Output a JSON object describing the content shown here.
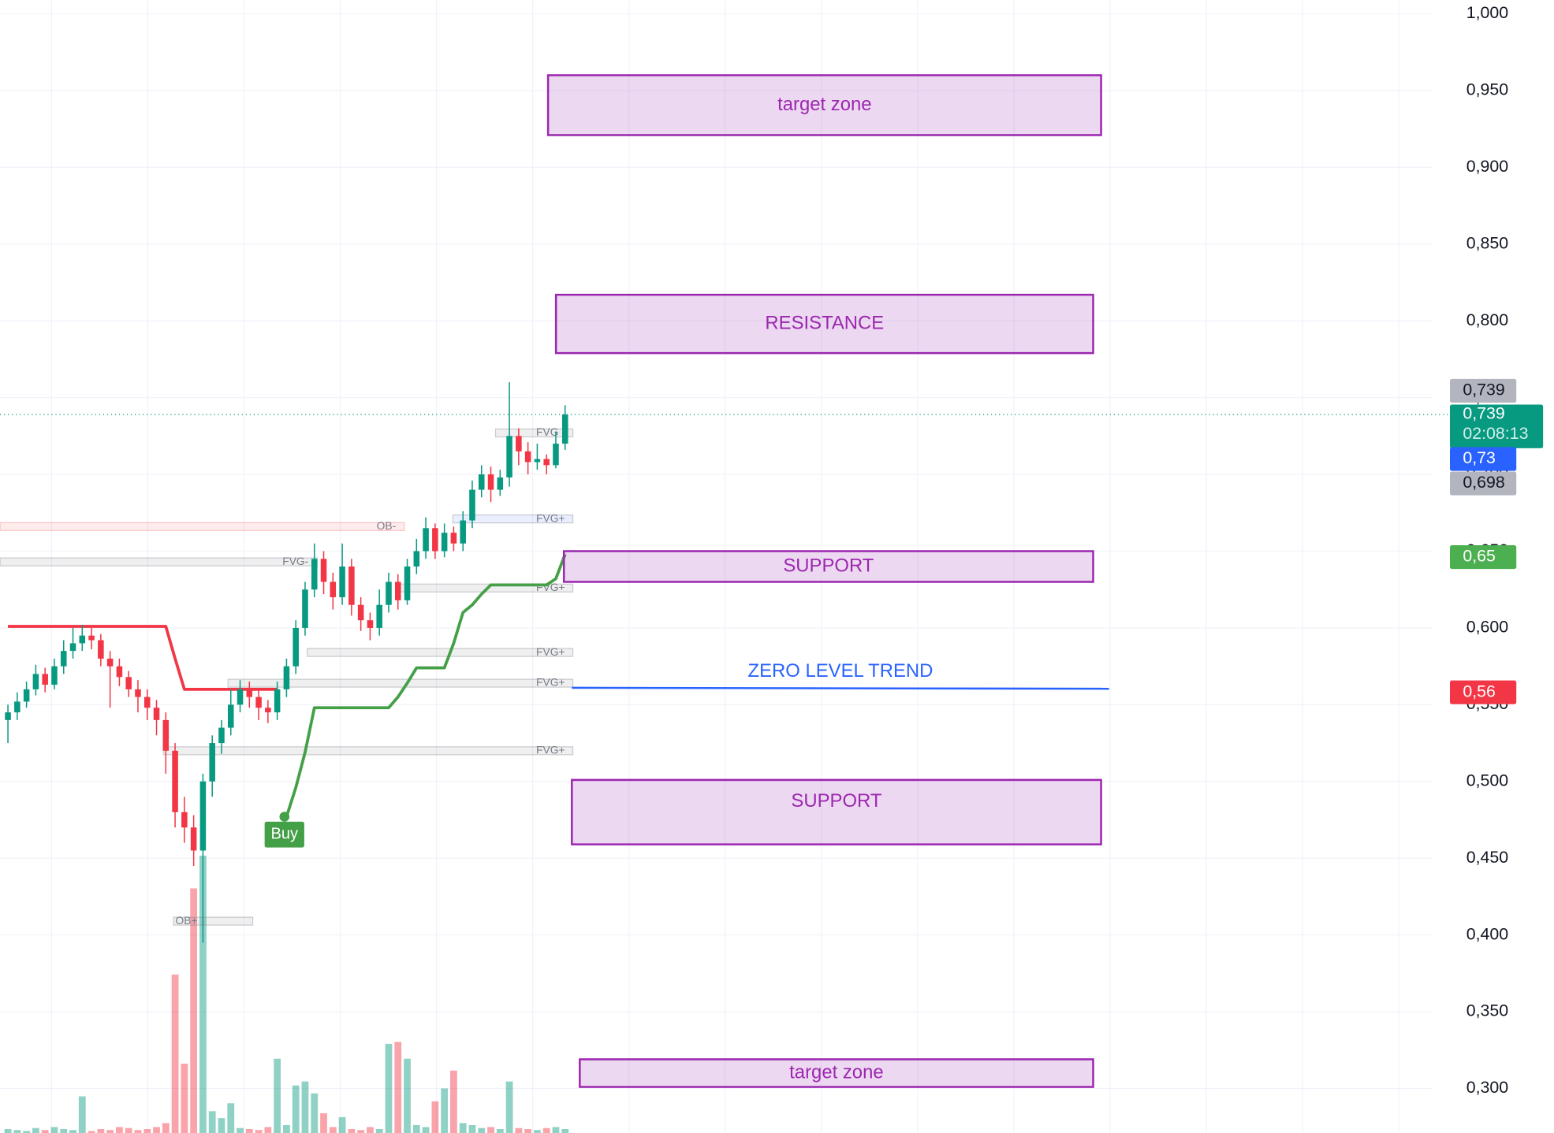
{
  "chart_data": {
    "type": "candlestick",
    "ylim": [
      0.271,
      1.009
    ],
    "yticks": [
      {
        "value": 1.0,
        "label": "1,000"
      },
      {
        "value": 0.95,
        "label": "0,950"
      },
      {
        "value": 0.9,
        "label": "0,900"
      },
      {
        "value": 0.85,
        "label": "0,850"
      },
      {
        "value": 0.8,
        "label": "0,800"
      },
      {
        "value": 0.75,
        "label": "0,750"
      },
      {
        "value": 0.7,
        "label": "0,700"
      },
      {
        "value": 0.65,
        "label": "0,650"
      },
      {
        "value": 0.6,
        "label": "0,600"
      },
      {
        "value": 0.55,
        "label": "0,550"
      },
      {
        "value": 0.5,
        "label": "0,500"
      },
      {
        "value": 0.45,
        "label": "0,450"
      },
      {
        "value": 0.4,
        "label": "0,400"
      },
      {
        "value": 0.35,
        "label": "0,350"
      },
      {
        "value": 0.3,
        "label": "0,300"
      }
    ],
    "grid": true,
    "up_color": "#089981",
    "down_color": "#f23645",
    "candles": {
      "open": [
        0.54,
        0.545,
        0.552,
        0.56,
        0.57,
        0.563,
        0.575,
        0.585,
        0.59,
        0.595,
        0.592,
        0.58,
        0.575,
        0.568,
        0.56,
        0.555,
        0.548,
        0.54,
        0.52,
        0.48,
        0.47,
        0.455,
        0.5,
        0.525,
        0.535,
        0.55,
        0.56,
        0.555,
        0.548,
        0.545,
        0.56,
        0.575,
        0.6,
        0.625,
        0.645,
        0.63,
        0.62,
        0.64,
        0.615,
        0.605,
        0.6,
        0.615,
        0.63,
        0.618,
        0.64,
        0.65,
        0.665,
        0.65,
        0.662,
        0.655,
        0.67,
        0.69,
        0.7,
        0.69,
        0.698,
        0.725,
        0.715,
        0.708,
        0.71,
        0.706,
        0.72
      ],
      "high": [
        0.55,
        0.558,
        0.565,
        0.576,
        0.574,
        0.58,
        0.592,
        0.6,
        0.602,
        0.6,
        0.596,
        0.585,
        0.58,
        0.572,
        0.566,
        0.56,
        0.553,
        0.545,
        0.525,
        0.49,
        0.478,
        0.505,
        0.53,
        0.54,
        0.56,
        0.566,
        0.565,
        0.56,
        0.553,
        0.565,
        0.58,
        0.605,
        0.63,
        0.655,
        0.65,
        0.636,
        0.655,
        0.645,
        0.62,
        0.61,
        0.625,
        0.636,
        0.635,
        0.645,
        0.658,
        0.672,
        0.668,
        0.668,
        0.666,
        0.676,
        0.696,
        0.706,
        0.705,
        0.703,
        0.76,
        0.73,
        0.721,
        0.72,
        0.713,
        0.728,
        0.745
      ],
      "low": [
        0.525,
        0.54,
        0.548,
        0.556,
        0.558,
        0.56,
        0.57,
        0.58,
        0.585,
        0.586,
        0.575,
        0.548,
        0.562,
        0.555,
        0.545,
        0.54,
        0.53,
        0.505,
        0.47,
        0.46,
        0.445,
        0.395,
        0.49,
        0.518,
        0.53,
        0.545,
        0.548,
        0.54,
        0.538,
        0.54,
        0.555,
        0.57,
        0.595,
        0.62,
        0.622,
        0.612,
        0.615,
        0.608,
        0.598,
        0.592,
        0.595,
        0.61,
        0.612,
        0.615,
        0.635,
        0.645,
        0.645,
        0.646,
        0.65,
        0.65,
        0.665,
        0.685,
        0.682,
        0.686,
        0.692,
        0.706,
        0.7,
        0.703,
        0.7,
        0.704,
        0.716
      ],
      "close": [
        0.545,
        0.552,
        0.56,
        0.57,
        0.563,
        0.575,
        0.585,
        0.59,
        0.595,
        0.592,
        0.58,
        0.575,
        0.568,
        0.56,
        0.555,
        0.548,
        0.54,
        0.52,
        0.48,
        0.47,
        0.455,
        0.5,
        0.525,
        0.535,
        0.55,
        0.56,
        0.555,
        0.548,
        0.545,
        0.56,
        0.575,
        0.6,
        0.625,
        0.645,
        0.63,
        0.62,
        0.64,
        0.615,
        0.605,
        0.6,
        0.615,
        0.63,
        0.618,
        0.64,
        0.65,
        0.665,
        0.65,
        0.662,
        0.655,
        0.67,
        0.69,
        0.7,
        0.69,
        0.698,
        0.725,
        0.715,
        0.708,
        0.71,
        0.706,
        0.72,
        0.739
      ]
    },
    "volume": [
      4,
      3,
      2,
      5,
      3,
      6,
      4,
      3,
      37,
      2,
      4,
      3,
      6,
      5,
      3,
      4,
      6,
      10,
      160,
      70,
      247,
      280,
      22,
      15,
      30,
      5,
      4,
      3,
      6,
      75,
      8,
      48,
      52,
      40,
      20,
      6,
      16,
      4,
      3,
      6,
      4,
      90,
      92,
      75,
      8,
      6,
      32,
      45,
      63,
      10,
      8,
      5,
      6,
      4,
      52,
      5,
      4,
      3,
      5,
      6,
      4
    ],
    "trend_down": {
      "color": "#f23645",
      "values": [
        0.601,
        0.601,
        0.601,
        0.601,
        0.601,
        0.601,
        0.601,
        0.601,
        0.601,
        0.601,
        0.601,
        0.601,
        0.601,
        0.601,
        0.601,
        0.601,
        0.601,
        0.601,
        0.58,
        0.56,
        0.56,
        0.56,
        0.56,
        0.56,
        0.56,
        0.56,
        0.56,
        0.56,
        0.56,
        0.56,
        null,
        null,
        null,
        null,
        null,
        null,
        null,
        null,
        null,
        null,
        null,
        null,
        null,
        null,
        null,
        null,
        null,
        null,
        null,
        null,
        null,
        null,
        null,
        null,
        null,
        null,
        null,
        null,
        null,
        null,
        null
      ]
    },
    "trend_up": {
      "color": "#43a047",
      "values": [
        null,
        null,
        null,
        null,
        null,
        null,
        null,
        null,
        null,
        null,
        null,
        null,
        null,
        null,
        null,
        null,
        null,
        null,
        null,
        null,
        null,
        null,
        null,
        null,
        null,
        null,
        null,
        null,
        null,
        null,
        0.477,
        0.496,
        0.519,
        0.548,
        0.548,
        0.548,
        0.548,
        0.548,
        0.548,
        0.548,
        0.548,
        0.548,
        0.555,
        0.564,
        0.574,
        0.574,
        0.574,
        0.574,
        0.59,
        0.61,
        0.615,
        0.622,
        0.628,
        0.628,
        0.628,
        0.628,
        0.628,
        0.628,
        0.628,
        0.632,
        0.648
      ]
    },
    "zone_color": "#9c27b0",
    "zones": [
      {
        "label": "target zone",
        "top": 0.96,
        "bottom": 0.921
      },
      {
        "label": "RESISTANCE",
        "top": 0.817,
        "bottom": 0.779
      },
      {
        "label": "SUPPORT",
        "top": 0.65,
        "bottom": 0.63
      },
      {
        "label": "SUPPORT",
        "top": 0.501,
        "bottom": 0.459
      },
      {
        "label": "target zone",
        "top": 0.319,
        "bottom": 0.301
      }
    ],
    "zero_line": {
      "label": "ZERO LEVEL TREND",
      "value": 0.561,
      "color": "#2962ff"
    },
    "smc_levels": [
      {
        "label": "FVG+",
        "value": 0.671
      },
      {
        "label": "FVG+",
        "value": 0.626
      },
      {
        "label": "FVG+",
        "value": 0.584
      },
      {
        "label": "FVG+",
        "value": 0.564
      },
      {
        "label": "FVG+",
        "value": 0.52
      },
      {
        "label": "FVG-",
        "value": 0.643
      },
      {
        "label": "OB-",
        "value": 0.666
      },
      {
        "label": "OB+",
        "value": 0.409
      },
      {
        "label": "FVG",
        "value": 0.727
      }
    ],
    "signals": [
      {
        "label": "Buy",
        "value": 0.477,
        "color": "#43a047"
      }
    ],
    "price_labels": [
      {
        "label": "0,739",
        "value": 0.739,
        "color": "#b2b5be"
      },
      {
        "label": "0,739",
        "value": 0.739,
        "color": "#089981",
        "countdown": "02:08:13"
      },
      {
        "label": "0,73",
        "value": 0.73,
        "color": "#2962ff"
      },
      {
        "label": "0,698",
        "value": 0.698,
        "color": "#b2b5be"
      },
      {
        "label": "0,65",
        "value": 0.65,
        "color": "#4caf50"
      },
      {
        "label": "0,56",
        "value": 0.56,
        "color": "#f23645"
      }
    ]
  }
}
